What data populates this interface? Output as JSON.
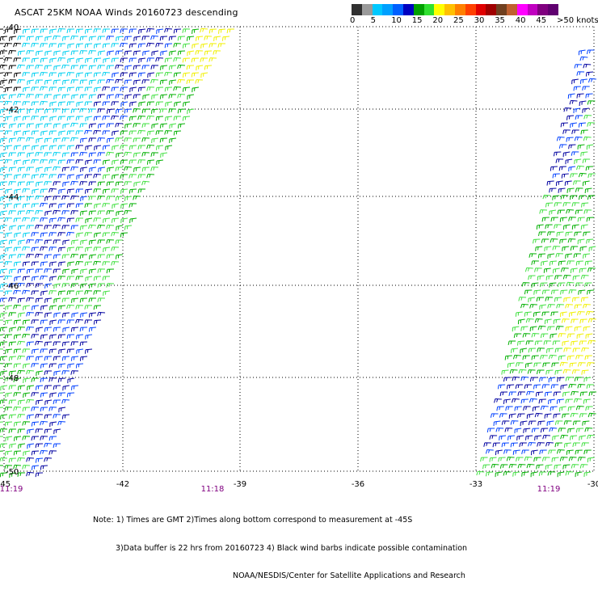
{
  "title": "ASCAT 25KM NOAA Winds 20160723 descending",
  "colorbar": {
    "labels": [
      "0",
      "5",
      "10",
      "15",
      "20",
      "25",
      "30",
      "35",
      "40",
      "45",
      ">50 knots"
    ],
    "colors": [
      "#303030",
      "#9a9a9a",
      "#00c8ff",
      "#00a0ff",
      "#0060ff",
      "#0000c0",
      "#00a000",
      "#30e030",
      "#ffff00",
      "#ffc000",
      "#ff8000",
      "#ff4000",
      "#e00000",
      "#a00000",
      "#704020",
      "#c06030",
      "#ff00ff",
      "#c000c0",
      "#800080",
      "#600070"
    ]
  },
  "axes": {
    "x_ticks": [
      "-45",
      "-42",
      "-39",
      "-36",
      "-33",
      "-30"
    ],
    "y_ticks": [
      "-40",
      "-42",
      "-44",
      "-46",
      "-48",
      "-50"
    ]
  },
  "swath_times": [
    "11:19",
    "11:18",
    "11:19"
  ],
  "notes": [
    "Note: 1) Times are GMT 2)Times along bottom correspond to measurement at -45S",
    "3)Data buffer is 22 hrs from 20160723 4) Black wind barbs indicate possible contamination",
    "NOAA/NESDIS/Center for Satellite Applications and Research"
  ],
  "legend_colors": {
    "black": "#000000",
    "cyan": "#00d0f0",
    "blue": "#0040ff",
    "navy": "#0000a0",
    "green": "#00b000",
    "lightgreen": "#40e040",
    "yellow": "#f0f000",
    "time": "#800080"
  }
}
